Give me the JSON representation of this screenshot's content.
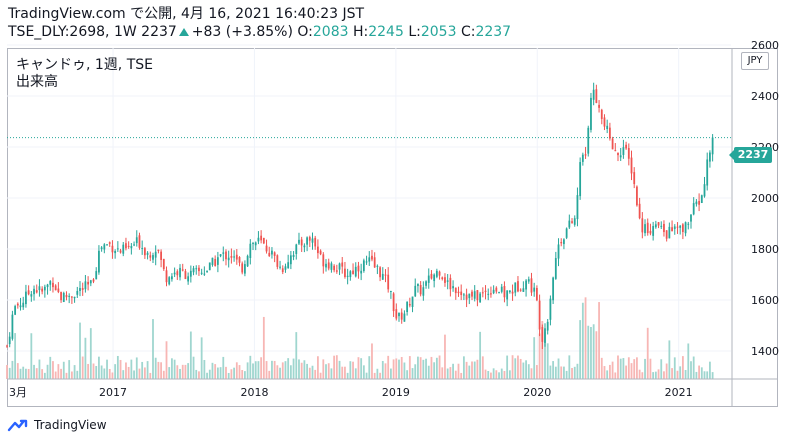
{
  "header": {
    "source_line": "TradingView.com で公開, 4月 16, 2021 16:40:23 JST",
    "symbol_label": "TSE_DLY:2698, 1W",
    "last": "2237",
    "change": "+83 (+3.85%)",
    "o_label": "O:",
    "o_value": "2083",
    "h_label": "H:",
    "h_value": "2245",
    "l_label": "L:",
    "l_value": "2053",
    "c_label": "C:",
    "c_value": "2237"
  },
  "legend": {
    "series_name": "キャンドゥ, 1週, TSE",
    "volume_label": "出来高"
  },
  "currency": "JPY",
  "last_price_tag": "2237",
  "footer": {
    "brand": "TradingView"
  },
  "colors": {
    "up": "#26a69a",
    "down": "#ef5350",
    "up_volume": "#9fd6cf",
    "down_volume": "#f7b6b4",
    "grid": "#f0f3fa",
    "last_line": "#26a69a"
  },
  "chart_data": {
    "type": "candlestick",
    "interval": "1W",
    "y_axis": {
      "range": [
        1300,
        2620
      ],
      "ticks": [
        1400,
        1600,
        1800,
        2000,
        2200,
        2400,
        2600
      ]
    },
    "x_axis": {
      "ticks": [
        {
          "label": "3月",
          "t": 0.0
        },
        {
          "label": "2017",
          "t": 0.75
        },
        {
          "label": "2018",
          "t": 1.75
        },
        {
          "label": "2019",
          "t": 2.75
        },
        {
          "label": "2020",
          "t": 3.75
        },
        {
          "label": "2021",
          "t": 4.75
        }
      ],
      "range": [
        0,
        5.12
      ]
    },
    "grid": true,
    "last_price": 2237,
    "close_path_points": [
      [
        0.0,
        1420
      ],
      [
        0.05,
        1570
      ],
      [
        0.12,
        1600
      ],
      [
        0.18,
        1650
      ],
      [
        0.25,
        1630
      ],
      [
        0.32,
        1680
      ],
      [
        0.38,
        1610
      ],
      [
        0.45,
        1620
      ],
      [
        0.52,
        1640
      ],
      [
        0.6,
        1660
      ],
      [
        0.66,
        1810
      ],
      [
        0.72,
        1820
      ],
      [
        0.8,
        1790
      ],
      [
        0.86,
        1800
      ],
      [
        0.93,
        1830
      ],
      [
        1.0,
        1780
      ],
      [
        1.06,
        1810
      ],
      [
        1.12,
        1690
      ],
      [
        1.2,
        1710
      ],
      [
        1.3,
        1700
      ],
      [
        1.42,
        1720
      ],
      [
        1.5,
        1770
      ],
      [
        1.58,
        1780
      ],
      [
        1.66,
        1720
      ],
      [
        1.72,
        1820
      ],
      [
        1.78,
        1830
      ],
      [
        1.86,
        1790
      ],
      [
        1.94,
        1720
      ],
      [
        2.02,
        1790
      ],
      [
        2.1,
        1830
      ],
      [
        2.16,
        1840
      ],
      [
        2.22,
        1760
      ],
      [
        2.3,
        1740
      ],
      [
        2.4,
        1700
      ],
      [
        2.48,
        1730
      ],
      [
        2.56,
        1750
      ],
      [
        2.64,
        1710
      ],
      [
        2.7,
        1650
      ],
      [
        2.76,
        1520
      ],
      [
        2.82,
        1560
      ],
      [
        2.88,
        1640
      ],
      [
        2.94,
        1640
      ],
      [
        3.0,
        1690
      ],
      [
        3.06,
        1720
      ],
      [
        3.12,
        1660
      ],
      [
        3.2,
        1640
      ],
      [
        3.28,
        1610
      ],
      [
        3.36,
        1620
      ],
      [
        3.44,
        1650
      ],
      [
        3.52,
        1620
      ],
      [
        3.6,
        1650
      ],
      [
        3.68,
        1680
      ],
      [
        3.74,
        1620
      ],
      [
        3.78,
        1450
      ],
      [
        3.82,
        1520
      ],
      [
        3.86,
        1690
      ],
      [
        3.9,
        1820
      ],
      [
        3.96,
        1880
      ],
      [
        4.02,
        1920
      ],
      [
        4.06,
        2170
      ],
      [
        4.1,
        2190
      ],
      [
        4.14,
        2460
      ],
      [
        4.2,
        2310
      ],
      [
        4.26,
        2240
      ],
      [
        4.3,
        2170
      ],
      [
        4.36,
        2200
      ],
      [
        4.42,
        2110
      ],
      [
        4.48,
        1890
      ],
      [
        4.54,
        1880
      ],
      [
        4.6,
        1890
      ],
      [
        4.66,
        1860
      ],
      [
        4.72,
        1880
      ],
      [
        4.78,
        1870
      ],
      [
        4.86,
        1960
      ],
      [
        4.92,
        2010
      ],
      [
        4.96,
        2170
      ],
      [
        4.99,
        2237
      ]
    ]
  }
}
